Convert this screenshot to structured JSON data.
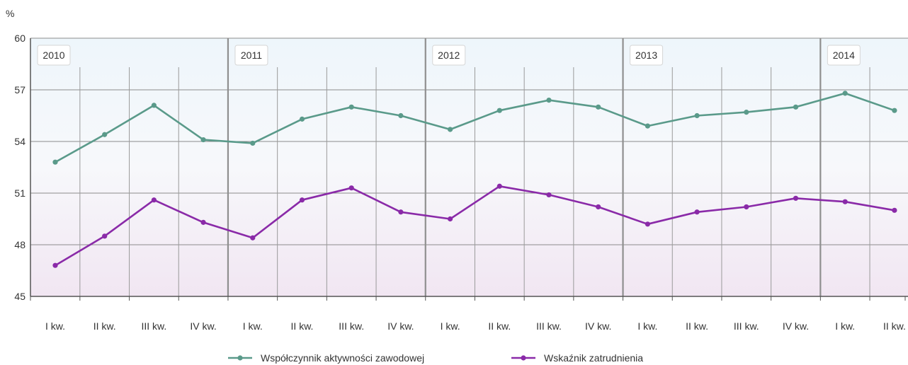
{
  "chart_data": {
    "type": "line",
    "ylabel": "%",
    "ylim": [
      45,
      60
    ],
    "yticks": [
      45,
      48,
      51,
      54,
      57,
      60
    ],
    "grid": true,
    "legend_position": "bottom",
    "years": [
      "2010",
      "2011",
      "2012",
      "2013",
      "2014"
    ],
    "categories": [
      "I kw.",
      "II kw.",
      "III kw.",
      "IV kw.",
      "I kw.",
      "II kw.",
      "III kw.",
      "IV kw.",
      "I kw.",
      "II kw.",
      "III kw.",
      "IV kw.",
      "I kw.",
      "II kw.",
      "III kw.",
      "IV kw.",
      "I kw.",
      "II kw."
    ],
    "series": [
      {
        "name": "Współczynnik aktywności zawodowej",
        "color": "#5a9a8a",
        "values": [
          52.8,
          54.4,
          56.1,
          54.1,
          53.9,
          55.3,
          56.0,
          55.5,
          54.7,
          55.8,
          56.4,
          56.0,
          54.9,
          55.5,
          55.7,
          56.0,
          56.8,
          55.8
        ]
      },
      {
        "name": "Wskaźnik zatrudnienia",
        "color": "#8a2aa8",
        "values": [
          46.8,
          48.5,
          50.6,
          49.3,
          48.4,
          50.6,
          51.3,
          49.9,
          49.5,
          51.4,
          50.9,
          50.2,
          49.2,
          49.9,
          50.2,
          50.7,
          50.5,
          50.0
        ]
      }
    ]
  }
}
